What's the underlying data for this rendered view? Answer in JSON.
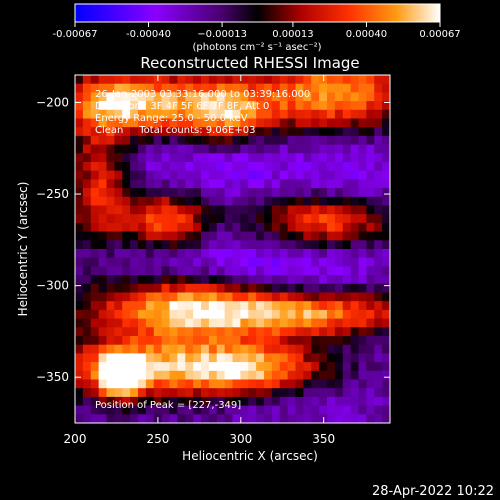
{
  "chart_data": {
    "type": "heatmap",
    "title": "Reconstructed RHESSI Image",
    "xlabel": "Heliocentric X (arcsec)",
    "ylabel": "Heliocentric Y (arcsec)",
    "xlim": [
      200,
      390
    ],
    "ylim": [
      -375,
      -185
    ],
    "x_ticks": [
      200,
      250,
      300,
      350
    ],
    "y_ticks": [
      -200,
      -250,
      -300,
      -350
    ],
    "x_tick_labels": [
      "200",
      "250",
      "300",
      "350"
    ],
    "y_tick_labels": [
      "−200",
      "−250",
      "−300",
      "−350"
    ],
    "colorbar": {
      "range": [
        -0.00067,
        0.00067
      ],
      "tick_values": [
        -0.00067,
        -0.0004,
        -0.00013,
        0.00013,
        0.0004,
        0.00067
      ],
      "tick_labels": [
        "-0.00067",
        "-0.00040",
        "−0.00013",
        "0.00013",
        "0.00040",
        "0.00067"
      ],
      "units": "(photons cm⁻² s⁻¹ asec⁻²)",
      "colors": [
        "#0000ff",
        "#8a00ff",
        "#4a0070",
        "#000000",
        "#b00000",
        "#ff3000",
        "#ff9a10",
        "#ffffff"
      ]
    },
    "annotations": [
      "26-Jan-2003 03:33:16.000 to 03:39:16.000",
      "Detectors: 3F 4F 5F 6F 7F 8F, Att 0",
      "Energy Range: 25.0 - 50.0 keV",
      "Clean     Total counts: 9.06E+03"
    ],
    "peak_label": "Position of Peak = [227,-349]",
    "peak": [
      227,
      -349
    ],
    "features": [
      {
        "x": 232,
        "y": -200,
        "sx": 32,
        "sy": 12,
        "v": 0.00062
      },
      {
        "x": 290,
        "y": -205,
        "sx": 20,
        "sy": 12,
        "v": 0.0004
      },
      {
        "x": 355,
        "y": -195,
        "sx": 35,
        "sy": 14,
        "v": 0.00052
      },
      {
        "x": 215,
        "y": -245,
        "sx": 14,
        "sy": 25,
        "v": 0.0003
      },
      {
        "x": 255,
        "y": -265,
        "sx": 18,
        "sy": 12,
        "v": 0.0004
      },
      {
        "x": 350,
        "y": -265,
        "sx": 30,
        "sy": 10,
        "v": 0.0004
      },
      {
        "x": 265,
        "y": -312,
        "sx": 40,
        "sy": 12,
        "v": 0.00055
      },
      {
        "x": 345,
        "y": -315,
        "sx": 45,
        "sy": 9,
        "v": 0.00045
      },
      {
        "x": 245,
        "y": -345,
        "sx": 45,
        "sy": 12,
        "v": 0.0005
      },
      {
        "x": 310,
        "y": -345,
        "sx": 30,
        "sy": 10,
        "v": 0.00035
      },
      {
        "x": 227,
        "y": -349,
        "sx": 8,
        "sy": 8,
        "v": 0.0007
      },
      {
        "x": 285,
        "y": -235,
        "sx": 50,
        "sy": 12,
        "v": -0.0004
      },
      {
        "x": 320,
        "y": -290,
        "sx": 45,
        "sy": 15,
        "v": -0.00045
      },
      {
        "x": 240,
        "y": -285,
        "sx": 30,
        "sy": 10,
        "v": -0.00035
      },
      {
        "x": 370,
        "y": -240,
        "sx": 20,
        "sy": 15,
        "v": -0.00035
      },
      {
        "x": 330,
        "y": -365,
        "sx": 40,
        "sy": 8,
        "v": -0.0003
      }
    ]
  },
  "footer": {
    "timestamp": "28-Apr-2022 10:22"
  }
}
